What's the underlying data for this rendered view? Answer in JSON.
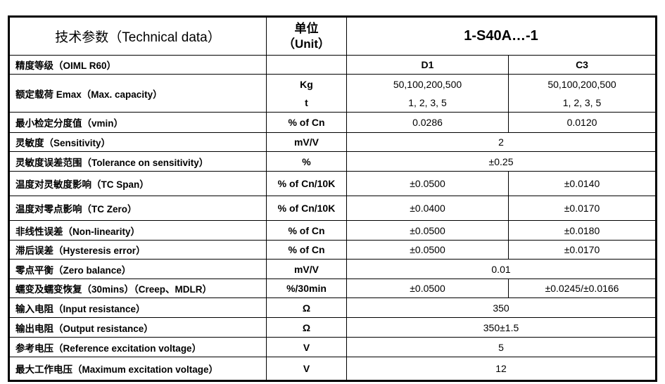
{
  "header": {
    "title": "技术参数（Technical data）",
    "unit_label": "单位",
    "unit_label_en": "（Unit）",
    "model": "1-S40A…-1"
  },
  "classes": {
    "label": "精度等级（OIML R60）",
    "d1": "D1",
    "c3": "C3"
  },
  "rows": [
    {
      "name": "额定载荷 Emax（Max. capacity）",
      "unit1": "Kg",
      "unit2": "t",
      "d1a": "50,100,200,500",
      "d1b": "1, 2, 3, 5",
      "c3a": "50,100,200,500",
      "c3b": "1, 2, 3, 5"
    },
    {
      "name": "最小检定分度值（vmin）",
      "unit": "% of Cn",
      "d1": "0.0286",
      "c3": "0.0120"
    },
    {
      "name": "灵敏度（Sensitivity）",
      "unit": "mV/V",
      "value": "2"
    },
    {
      "name": "灵敏度误差范围（Tolerance on sensitivity）",
      "unit": "%",
      "value": "±0.25"
    },
    {
      "name": "温度对灵敏度影响（TC Span）",
      "unit": "% of Cn/10K",
      "d1": "±0.0500",
      "c3": "±0.0140"
    },
    {
      "name": "温度对零点影响（TC Zero）",
      "unit": "% of Cn/10K",
      "d1": "±0.0400",
      "c3": "±0.0170"
    },
    {
      "name": "非线性误差（Non-linearity）",
      "unit": "% of Cn",
      "d1": "±0.0500",
      "c3": "±0.0180"
    },
    {
      "name": "滞后误差（Hysteresis error）",
      "unit": "% of Cn",
      "d1": "±0.0500",
      "c3": "±0.0170"
    },
    {
      "name": "零点平衡（Zero balance）",
      "unit": "mV/V",
      "value": "0.01"
    },
    {
      "name": "蠕变及蠕变恢复（30mins）（Creep、MDLR）",
      "unit": "%/30min",
      "d1": "±0.0500",
      "c3": "±0.0245/±0.0166"
    },
    {
      "name": "输入电阻（Input resistance）",
      "unit": "Ω",
      "value": "350"
    },
    {
      "name": "输出电阻（Output resistance）",
      "unit": "Ω",
      "value": "350±1.5"
    },
    {
      "name": "参考电压（Reference excitation voltage）",
      "unit": "V",
      "value": "5"
    },
    {
      "name": "最大工作电压（Maximum excitation voltage）",
      "unit": "V",
      "value": "12"
    }
  ]
}
